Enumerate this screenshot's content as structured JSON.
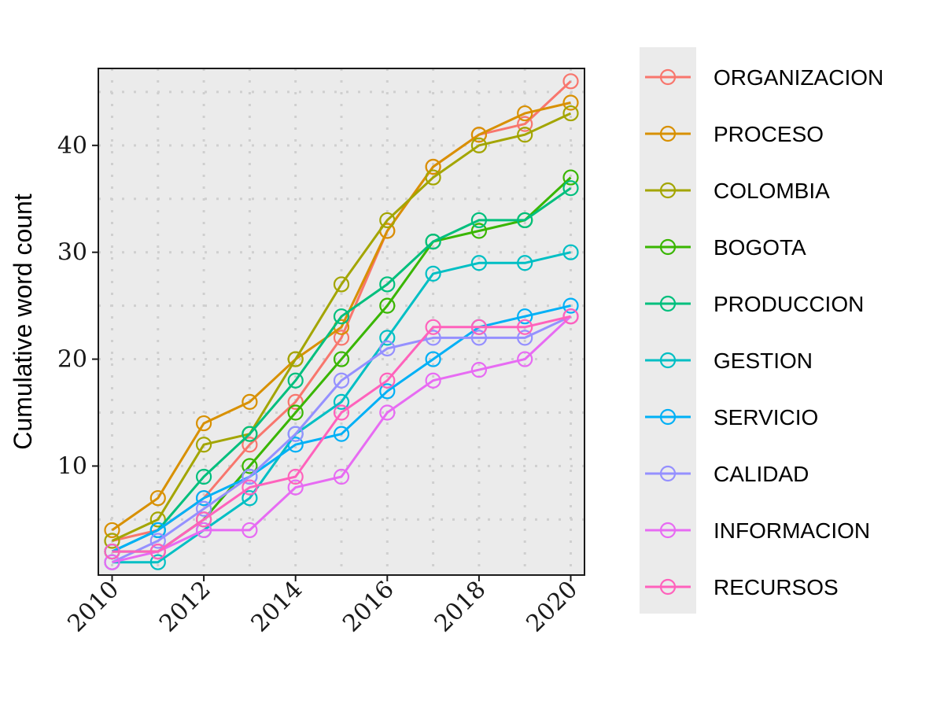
{
  "chart_data": {
    "type": "line",
    "title": "",
    "xlabel": "",
    "ylabel": "Cumulative word count",
    "x": [
      2010,
      2011,
      2012,
      2013,
      2014,
      2015,
      2016,
      2017,
      2018,
      2019,
      2020
    ],
    "xticks": [
      2010,
      2012,
      2014,
      2016,
      2018,
      2020
    ],
    "xtick_labels": [
      "2010",
      "2012",
      "2014",
      "2016",
      "2018",
      "2020"
    ],
    "xlim": [
      2009.7,
      2020.3
    ],
    "yticks": [
      10,
      20,
      30,
      40
    ],
    "ytick_labels": [
      "10",
      "20",
      "30",
      "40"
    ],
    "ylim": [
      -0.2,
      47.2
    ],
    "grid": true,
    "legend_position": "right",
    "series": [
      {
        "name": "ORGANIZACION",
        "color": "#F8766D",
        "values": [
          3,
          4,
          7,
          12,
          16,
          22,
          32,
          38,
          41,
          42,
          46
        ]
      },
      {
        "name": "PROCESO",
        "color": "#D89000",
        "values": [
          4,
          7,
          14,
          16,
          20,
          23,
          32,
          38,
          41,
          43,
          44
        ]
      },
      {
        "name": "COLOMBIA",
        "color": "#A3A500",
        "values": [
          3,
          5,
          12,
          13,
          20,
          27,
          33,
          37,
          40,
          41,
          43
        ]
      },
      {
        "name": "BOGOTA",
        "color": "#39B600",
        "values": [
          2,
          2,
          5,
          10,
          15,
          20,
          25,
          31,
          32,
          33,
          37
        ]
      },
      {
        "name": "PRODUCCION",
        "color": "#00BF7D",
        "values": [
          2,
          4,
          9,
          13,
          18,
          24,
          27,
          31,
          33,
          33,
          36
        ]
      },
      {
        "name": "GESTION",
        "color": "#00BFC4",
        "values": [
          1,
          1,
          4,
          7,
          13,
          16,
          22,
          28,
          29,
          29,
          30
        ]
      },
      {
        "name": "SERVICIO",
        "color": "#00B0F6",
        "values": [
          2,
          4,
          7,
          9,
          12,
          13,
          17,
          20,
          23,
          24,
          25
        ]
      },
      {
        "name": "CALIDAD",
        "color": "#9590FF",
        "values": [
          1,
          3,
          6,
          9,
          13,
          18,
          21,
          22,
          22,
          22,
          24
        ]
      },
      {
        "name": "INFORMACION",
        "color": "#E76BF3",
        "values": [
          1,
          2,
          4,
          4,
          8,
          9,
          15,
          18,
          19,
          20,
          24
        ]
      },
      {
        "name": "RECURSOS",
        "color": "#FF62BC",
        "values": [
          2,
          2,
          5,
          8,
          9,
          15,
          18,
          23,
          23,
          23,
          24
        ]
      }
    ]
  }
}
